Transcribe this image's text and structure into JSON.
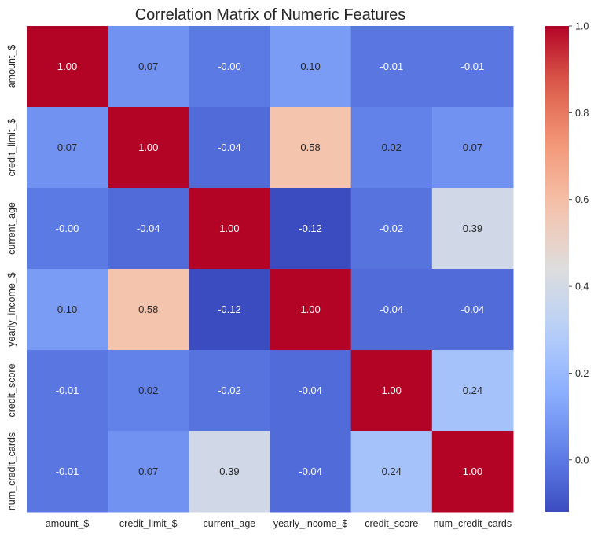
{
  "chart_data": {
    "type": "heatmap",
    "title": "Correlation Matrix of Numeric Features",
    "row_labels": [
      "amount_$",
      "credit_limit_$",
      "current_age",
      "yearly_income_$",
      "credit_score",
      "num_credit_cards"
    ],
    "col_labels": [
      "amount_$",
      "credit_limit_$",
      "current_age",
      "yearly_income_$",
      "credit_score",
      "num_credit_cards"
    ],
    "values": [
      [
        1.0,
        0.07,
        -0.0,
        0.1,
        -0.01,
        -0.01
      ],
      [
        0.07,
        1.0,
        -0.04,
        0.58,
        0.02,
        0.07
      ],
      [
        -0.0,
        -0.04,
        1.0,
        -0.12,
        -0.02,
        0.39
      ],
      [
        0.1,
        0.58,
        -0.12,
        1.0,
        -0.04,
        -0.04
      ],
      [
        -0.01,
        0.02,
        -0.02,
        -0.04,
        1.0,
        0.24
      ],
      [
        -0.01,
        0.07,
        0.39,
        -0.04,
        0.24,
        1.0
      ]
    ],
    "value_labels": [
      [
        "1.00",
        "0.07",
        "-0.00",
        "0.10",
        "-0.01",
        "-0.01"
      ],
      [
        "0.07",
        "1.00",
        "-0.04",
        "0.58",
        "0.02",
        "0.07"
      ],
      [
        "-0.00",
        "-0.04",
        "1.00",
        "-0.12",
        "-0.02",
        "0.39"
      ],
      [
        "0.10",
        "0.58",
        "-0.12",
        "1.00",
        "-0.04",
        "-0.04"
      ],
      [
        "-0.01",
        "0.02",
        "-0.02",
        "-0.04",
        "1.00",
        "0.24"
      ],
      [
        "-0.01",
        "0.07",
        "0.39",
        "-0.04",
        "0.24",
        "1.00"
      ]
    ],
    "colormap": "coolwarm",
    "color_range": [
      -0.12,
      1.0
    ],
    "colorbar_ticks": [
      0.0,
      0.2,
      0.4,
      0.6,
      0.8,
      1.0
    ],
    "colorbar_tick_labels": [
      "0.0",
      "0.2",
      "0.4",
      "0.6",
      "0.8",
      "1.0"
    ],
    "annotation_colors": {
      "light": "#ffffff",
      "dark": "#262626"
    }
  }
}
